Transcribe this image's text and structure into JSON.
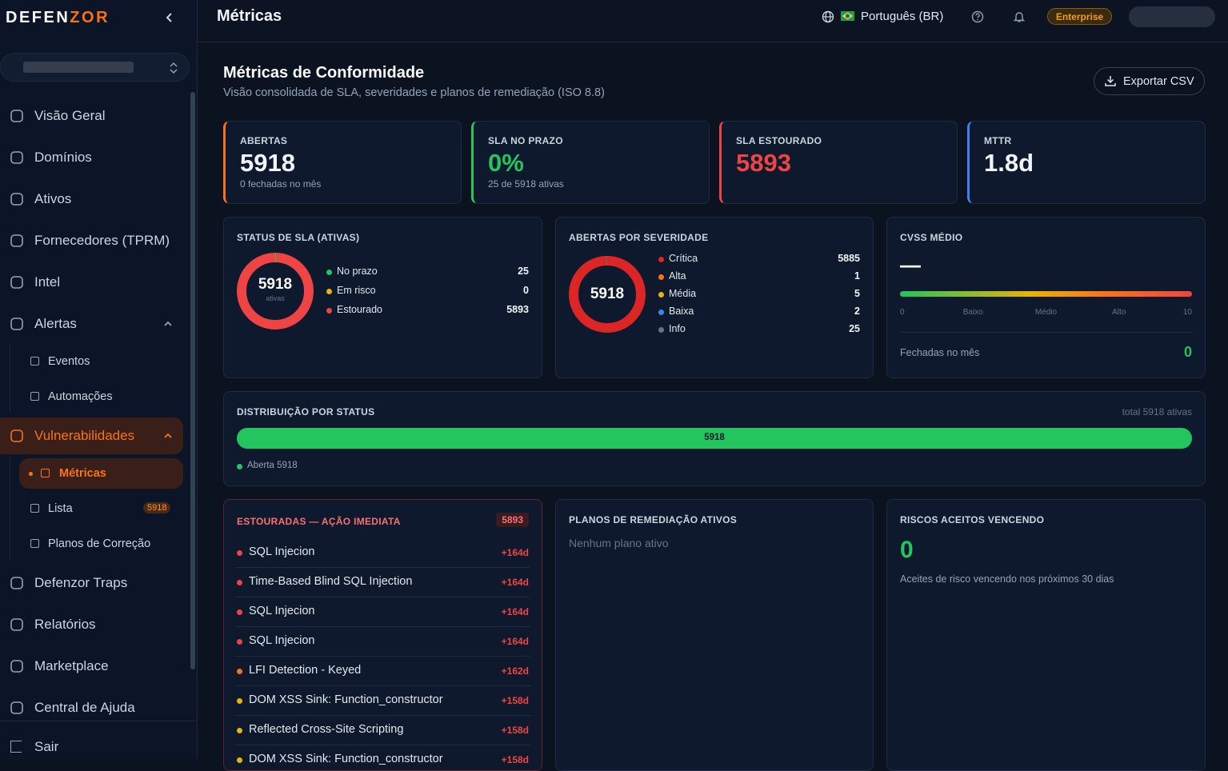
{
  "sidebar": {
    "logo": [
      "DEFEN",
      "ZOR"
    ],
    "nav": [
      {
        "label": "Visão Geral"
      },
      {
        "label": "Domínios"
      },
      {
        "label": "Ativos"
      },
      {
        "label": "Fornecedores (TPRM)"
      },
      {
        "label": "Intel"
      },
      {
        "label": "Alertas",
        "children": [
          {
            "label": "Eventos"
          },
          {
            "label": "Automações"
          }
        ]
      },
      {
        "label": "Vulnerabilidades",
        "active": true,
        "children": [
          {
            "label": "Métricas",
            "active": true
          },
          {
            "label": "Lista",
            "badge": 5918
          },
          {
            "label": "Planos de Correção"
          }
        ]
      },
      {
        "label": "Defenzor Traps"
      },
      {
        "label": "Relatórios"
      },
      {
        "label": "Marketplace"
      },
      {
        "label": "Central de Ajuda"
      }
    ],
    "footer": "Sair"
  },
  "header": {
    "title": "Métricas",
    "language": "Português (BR)",
    "plan": "Enterprise"
  },
  "page": {
    "title": "Métricas de Conformidade",
    "subtitle": "Visão consolidada de SLA, severidades e planos de remediação (ISO 8.8)",
    "export_button": "Exportar CSV"
  },
  "kpis": [
    {
      "label": "ABERTAS",
      "value": 5918,
      "sub": "0 fechadas no mês",
      "accent": "#f97316",
      "value_color": "#f1f5f9"
    },
    {
      "label": "SLA NO PRAZO",
      "value": "0%",
      "sub": "25 de 5918 ativas",
      "accent": "#22c55e",
      "value_color": "#22c55e"
    },
    {
      "label": "SLA ESTOURADO",
      "value": 5893,
      "accent": "#ef4444",
      "value_color": "#ef4444"
    },
    {
      "label": "MTTR",
      "value": "1.8d",
      "accent": "#3b82f6",
      "value_color": "#f1f5f9"
    }
  ],
  "sla_status": {
    "title": "STATUS DE SLA (ATIVAS)",
    "total": 5918,
    "total_label": "ativas",
    "items": [
      {
        "name": "No prazo",
        "value": 25,
        "color": "#22c55e"
      },
      {
        "name": "Em risco",
        "value": 0,
        "color": "#eab308"
      },
      {
        "name": "Estourado",
        "value": 5893,
        "color": "#ef4444"
      }
    ]
  },
  "severity": {
    "title": "ABERTAS POR SEVERIDADE",
    "total": 5918,
    "items": [
      {
        "name": "Crítica",
        "value": 5885,
        "color": "#dc2626"
      },
      {
        "name": "Alta",
        "value": 1,
        "color": "#f97316"
      },
      {
        "name": "Média",
        "value": 5,
        "color": "#eab308"
      },
      {
        "name": "Baixa",
        "value": 2,
        "color": "#3b82f6"
      },
      {
        "name": "Info",
        "value": 25,
        "color": "#6b7280"
      }
    ]
  },
  "cvss": {
    "title": "CVSS MÉDIO",
    "value": "—",
    "scale": [
      "0",
      "Baixo",
      "Médio",
      "Alto",
      "10"
    ],
    "closed_label": "Fechadas no mês",
    "closed_value": 0
  },
  "distribution": {
    "title": "DISTRIBUIÇÃO POR STATUS",
    "total_text": "total 5918 ativas",
    "total": 5918,
    "segments": [
      {
        "name": "Aberta",
        "value": 5918,
        "color": "#22c55e"
      }
    ]
  },
  "overdue": {
    "title": "ESTOURADAS — AÇÃO IMEDIATA",
    "count": 5893,
    "items": [
      {
        "name": "SQL Injecion",
        "age": "+164d",
        "color": "#ef4444"
      },
      {
        "name": "Time-Based Blind SQL Injection",
        "age": "+164d",
        "color": "#ef4444"
      },
      {
        "name": "SQL Injecion",
        "age": "+164d",
        "color": "#ef4444"
      },
      {
        "name": "SQL Injecion",
        "age": "+164d",
        "color": "#ef4444"
      },
      {
        "name": "LFI Detection - Keyed",
        "age": "+162d",
        "color": "#f97316"
      },
      {
        "name": "DOM XSS Sink: Function_constructor",
        "age": "+158d",
        "color": "#eab308"
      },
      {
        "name": "Reflected Cross-Site Scripting",
        "age": "+158d",
        "color": "#eab308"
      },
      {
        "name": "DOM XSS Sink: Function_constructor",
        "age": "+158d",
        "color": "#eab308"
      }
    ]
  },
  "plans": {
    "title": "PLANOS DE REMEDIAÇÃO ATIVOS",
    "empty": "Nenhum plano ativo"
  },
  "risks": {
    "title": "RISCOS ACEITOS VENCENDO",
    "value": 0,
    "description": "Aceites de risco vencendo nos próximos 30 dias"
  }
}
